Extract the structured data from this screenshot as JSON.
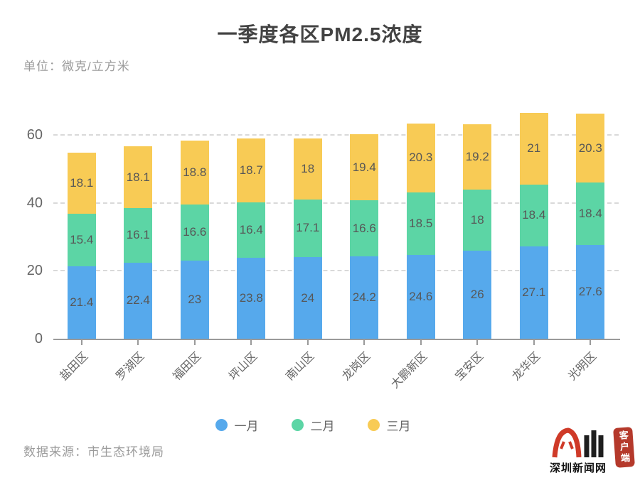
{
  "title": "一季度各区PM2.5浓度",
  "unit_label": "单位：微克/立方米",
  "source_label": "数据来源：市生态环境局",
  "logo": {
    "site_name": "深圳新闻网",
    "badge": "客户端"
  },
  "colors": {
    "january": "#56a9ec",
    "february": "#5cd5a5",
    "march": "#f8cb55",
    "title_text": "#424242",
    "muted_text": "#9b9b9b",
    "axis_text": "#666666",
    "value_text": "#575757",
    "grid_line": "#d9d9d9",
    "axis_line": "#9a9a9a",
    "logo_red": "#cf3a28",
    "seal_red": "#b5392b"
  },
  "chart_data": {
    "type": "bar",
    "stacked": true,
    "title": "一季度各区PM2.5浓度",
    "unit": "微克/立方米",
    "xlabel": "",
    "ylabel": "",
    "categories": [
      "盐田区",
      "罗湖区",
      "福田区",
      "坪山区",
      "南山区",
      "龙岗区",
      "大鹏新区",
      "宝安区",
      "龙华区",
      "光明区"
    ],
    "series": [
      {
        "id": "january",
        "name": "一月",
        "color": "#56a9ec",
        "values": [
          21.4,
          22.4,
          23,
          23.8,
          24,
          24.2,
          24.6,
          26,
          27.1,
          27.6
        ]
      },
      {
        "id": "february",
        "name": "二月",
        "color": "#5cd5a5",
        "values": [
          15.4,
          16.1,
          16.6,
          16.4,
          17.1,
          16.6,
          18.5,
          18,
          18.4,
          18.4
        ]
      },
      {
        "id": "march",
        "name": "三月",
        "color": "#f8cb55",
        "values": [
          18.1,
          18.1,
          18.8,
          18.7,
          18,
          19.4,
          20.3,
          19.2,
          21,
          20.3
        ]
      }
    ],
    "totals": [
      54.9,
      56.6,
      58.4,
      58.9,
      59.1,
      60.2,
      63.4,
      63.2,
      66.5,
      66.3
    ],
    "y_ticks": [
      0,
      20,
      40,
      60
    ],
    "ylim": [
      0,
      68.5
    ],
    "grid": "horizontal dashed at 20/40/60",
    "legend_position": "bottom",
    "value_labels": "inside each segment"
  },
  "legend": [
    {
      "label": "一月",
      "color": "#56a9ec"
    },
    {
      "label": "二月",
      "color": "#5cd5a5"
    },
    {
      "label": "三月",
      "color": "#f8cb55"
    }
  ]
}
